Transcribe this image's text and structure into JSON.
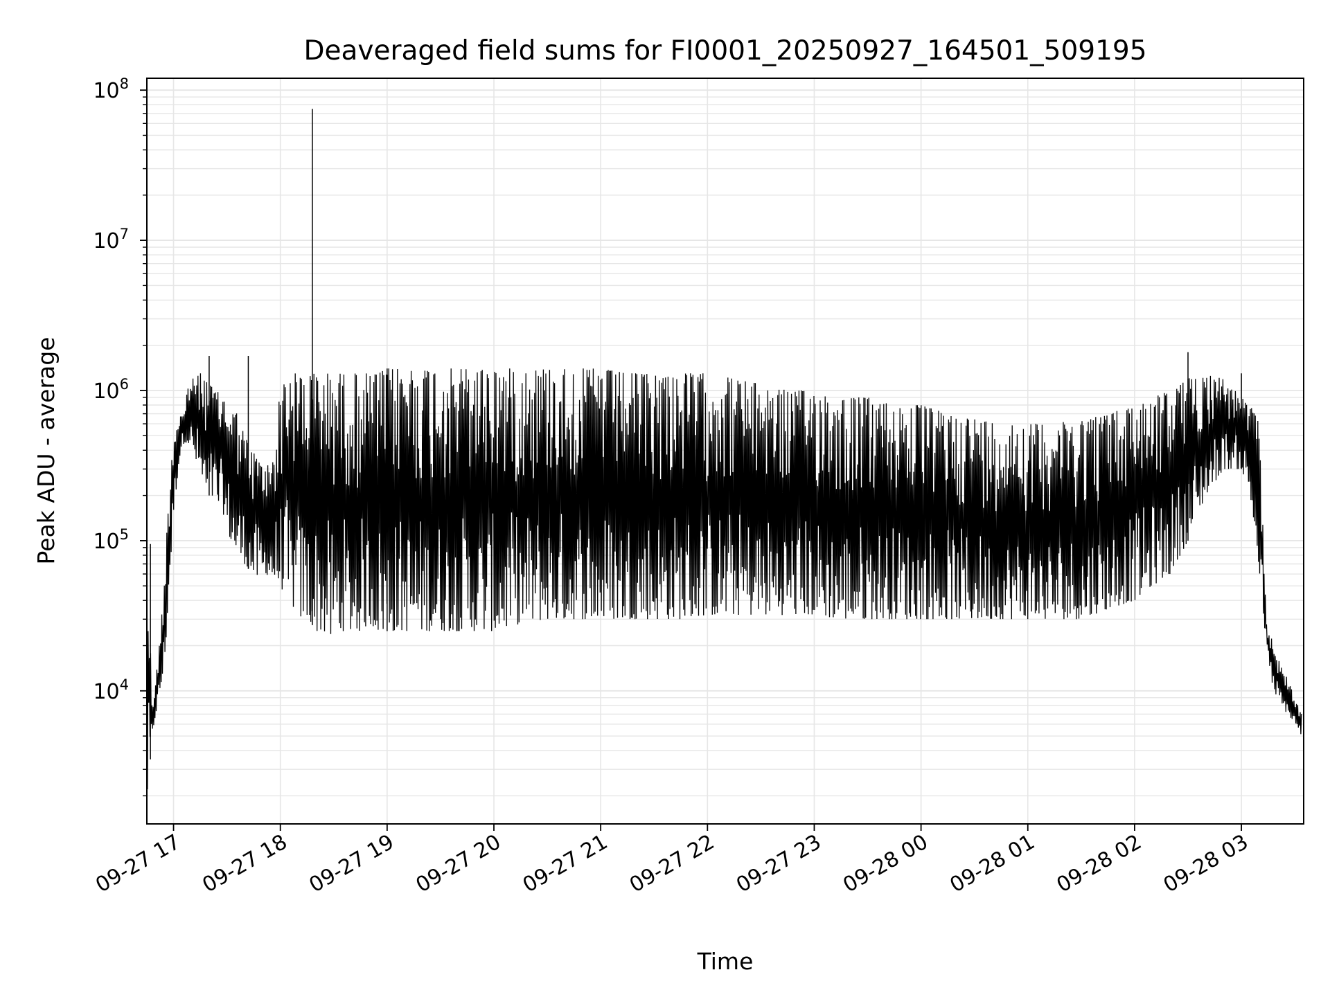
{
  "chart_data": {
    "type": "line",
    "title": "Deaveraged field sums for FI0001_20250927_164501_509195",
    "xlabel": "Time",
    "ylabel": "Peak ADU - average",
    "yscale": "log",
    "xlim": [
      "2025-09-27 16:45",
      "2025-09-28 03:35"
    ],
    "ylim": [
      1300,
      120000000
    ],
    "grid": true,
    "grid_minor": true,
    "legend": "none",
    "colors": {
      "line": "#000000",
      "grid": "#e6e6e6",
      "axes": "#000000",
      "background": "#ffffff"
    },
    "x_ticks": [
      {
        "value": "2025-09-27 17:00",
        "label": "09-27 17"
      },
      {
        "value": "2025-09-27 18:00",
        "label": "09-27 18"
      },
      {
        "value": "2025-09-27 19:00",
        "label": "09-27 19"
      },
      {
        "value": "2025-09-27 20:00",
        "label": "09-27 20"
      },
      {
        "value": "2025-09-27 21:00",
        "label": "09-27 21"
      },
      {
        "value": "2025-09-27 22:00",
        "label": "09-27 22"
      },
      {
        "value": "2025-09-27 23:00",
        "label": "09-27 23"
      },
      {
        "value": "2025-09-28 00:00",
        "label": "09-28 00"
      },
      {
        "value": "2025-09-28 01:00",
        "label": "09-28 01"
      },
      {
        "value": "2025-09-28 02:00",
        "label": "09-28 02"
      },
      {
        "value": "2025-09-28 03:00",
        "label": "09-28 03"
      }
    ],
    "y_ticks": [
      {
        "value": 10000,
        "base": "10",
        "exp": "4"
      },
      {
        "value": 100000,
        "base": "10",
        "exp": "5"
      },
      {
        "value": 1000000,
        "base": "10",
        "exp": "6"
      },
      {
        "value": 10000000,
        "base": "10",
        "exp": "7"
      },
      {
        "value": 100000000,
        "base": "10",
        "exp": "8"
      }
    ],
    "series": [
      {
        "x": [
          "2025-09-27 16:45",
          "2025-09-27 16:46",
          "2025-09-27 16:47",
          "2025-09-27 16:48",
          "2025-09-27 16:49",
          "2025-09-27 16:50",
          "2025-09-27 16:52",
          "2025-09-27 16:55",
          "2025-09-27 16:58",
          "2025-09-27 17:00",
          "2025-09-27 17:02",
          "2025-09-27 17:04",
          "2025-09-27 17:06",
          "2025-09-27 17:08",
          "2025-09-27 17:10",
          "2025-09-27 17:12",
          "2025-09-27 17:14",
          "2025-09-27 17:16",
          "2025-09-27 17:18",
          "2025-09-27 17:20",
          "2025-09-27 17:24",
          "2025-09-27 17:28",
          "2025-09-27 17:32",
          "2025-09-27 17:36",
          "2025-09-27 17:40",
          "2025-09-27 17:44",
          "2025-09-27 17:48",
          "2025-09-27 17:52",
          "2025-09-27 17:56",
          "2025-09-27 18:00",
          "2025-09-27 18:04",
          "2025-09-27 18:08",
          "2025-09-27 18:12",
          "2025-09-27 18:16",
          "2025-09-27 18:20",
          "2025-09-27 18:24",
          "2025-09-27 18:28",
          "2025-09-27 18:32",
          "2025-09-27 18:36",
          "2025-09-27 18:40",
          "2025-09-27 18:45",
          "2025-09-27 18:50",
          "2025-09-27 18:55",
          "2025-09-27 19:00",
          "2025-09-27 19:10",
          "2025-09-27 19:20",
          "2025-09-27 19:30",
          "2025-09-27 19:40",
          "2025-09-27 19:50",
          "2025-09-27 20:00",
          "2025-09-27 20:15",
          "2025-09-27 20:30",
          "2025-09-27 20:45",
          "2025-09-27 21:00",
          "2025-09-27 21:15",
          "2025-09-27 21:30",
          "2025-09-27 21:45",
          "2025-09-27 22:00",
          "2025-09-27 22:15",
          "2025-09-27 22:30",
          "2025-09-27 22:45",
          "2025-09-27 23:00",
          "2025-09-27 23:15",
          "2025-09-27 23:30",
          "2025-09-27 23:45",
          "2025-09-28 00:00",
          "2025-09-28 00:15",
          "2025-09-28 00:30",
          "2025-09-28 00:45",
          "2025-09-28 01:00",
          "2025-09-28 01:15",
          "2025-09-28 01:30",
          "2025-09-28 01:45",
          "2025-09-28 02:00",
          "2025-09-28 02:10",
          "2025-09-28 02:20",
          "2025-09-28 02:30",
          "2025-09-28 02:40",
          "2025-09-28 02:50",
          "2025-09-28 03:00",
          "2025-09-28 03:05",
          "2025-09-28 03:10",
          "2025-09-28 03:14",
          "2025-09-28 03:18",
          "2025-09-28 03:22",
          "2025-09-28 03:26",
          "2025-09-28 03:30",
          "2025-09-28 03:34"
        ],
        "lower": [
          1500,
          3000,
          3500,
          4500,
          6000,
          7000,
          9000,
          15000,
          60000,
          150000,
          250000,
          400000,
          450000,
          450000,
          400000,
          350000,
          300000,
          250000,
          200000,
          200000,
          180000,
          150000,
          100000,
          80000,
          70000,
          60000,
          55000,
          60000,
          55000,
          50000,
          40000,
          35000,
          30000,
          30000,
          25000,
          25000,
          22000,
          25000,
          25000,
          25000,
          25000,
          28000,
          25000,
          25000,
          25000,
          25000,
          25000,
          25000,
          25000,
          25000,
          28000,
          30000,
          30000,
          30000,
          30000,
          30000,
          30000,
          32000,
          32000,
          32000,
          32000,
          32000,
          30000,
          30000,
          30000,
          30000,
          30000,
          30000,
          30000,
          30000,
          30000,
          30000,
          35000,
          40000,
          50000,
          60000,
          100000,
          200000,
          300000,
          300000,
          200000,
          60000,
          20000,
          10000,
          8000,
          7000,
          6000,
          5000
        ],
        "upper": [
          90000,
          30000,
          20000,
          8000,
          10000,
          12000,
          20000,
          60000,
          300000,
          500000,
          650000,
          700000,
          700000,
          1100000,
          1200000,
          1200000,
          1300000,
          1300000,
          1200000,
          1100000,
          1000000,
          900000,
          800000,
          700000,
          500000,
          400000,
          350000,
          300000,
          400000,
          1000000,
          1300000,
          1300000,
          1300000,
          1300000,
          1300000,
          1300000,
          1300000,
          1300000,
          1300000,
          1300000,
          1300000,
          1300000,
          1300000,
          1400000,
          1400000,
          1400000,
          1400000,
          1400000,
          1400000,
          1400000,
          1400000,
          1400000,
          1400000,
          1400000,
          1300000,
          1300000,
          1300000,
          1300000,
          1200000,
          1100000,
          1000000,
          1000000,
          900000,
          900000,
          800000,
          800000,
          700000,
          650000,
          600000,
          600000,
          600000,
          650000,
          700000,
          800000,
          900000,
          1000000,
          1200000,
          1300000,
          1200000,
          900000,
          800000,
          600000,
          30000,
          20000,
          15000,
          12000,
          9000,
          7000
        ]
      }
    ],
    "spikes": [
      {
        "x": "2025-09-27 16:47",
        "y": 95000
      },
      {
        "x": "2025-09-27 17:20",
        "y": 1700000
      },
      {
        "x": "2025-09-27 17:42",
        "y": 1700000
      },
      {
        "x": "2025-09-27 18:18",
        "y": 75000000
      },
      {
        "x": "2025-09-27 19:00",
        "y": 1400000
      },
      {
        "x": "2025-09-28 02:30",
        "y": 1800000
      },
      {
        "x": "2025-09-28 03:00",
        "y": 1300000
      }
    ]
  }
}
